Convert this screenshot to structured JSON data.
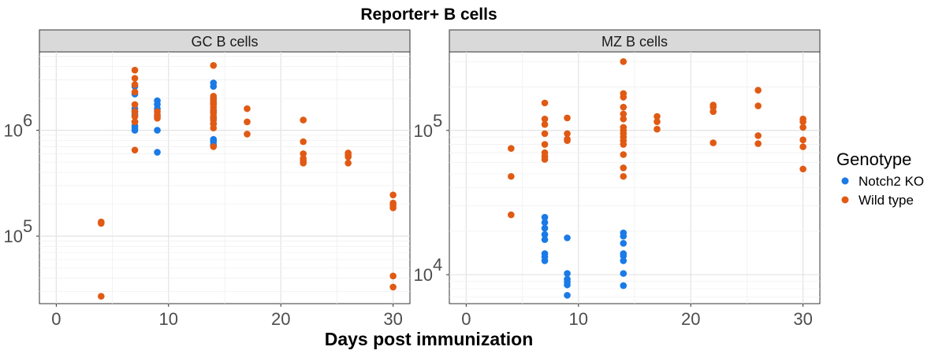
{
  "figure": {
    "title": "Reporter+ B cells",
    "xlabel": "Days post immunization"
  },
  "legend": {
    "title": "Genotype",
    "placement": "right",
    "items": [
      {
        "label": "Notch2 KO",
        "color": "#1a7ae6"
      },
      {
        "label": "Wild type",
        "color": "#e05a14"
      }
    ]
  },
  "chart_data": [
    {
      "type": "scatter",
      "panel": "GC B cells",
      "xlim": [
        -1.5,
        31.5
      ],
      "ylim": [
        23000.0,
        5500000.0
      ],
      "yscale": "log",
      "grid": true,
      "xticks": [
        {
          "value": 0,
          "label": "0"
        },
        {
          "value": 10,
          "label": "10"
        },
        {
          "value": 20,
          "label": "20"
        },
        {
          "value": 30,
          "label": "30"
        }
      ],
      "yticks": [
        {
          "value": 100000,
          "label": "10",
          "exp": "5"
        },
        {
          "value": 1000000,
          "label": "10",
          "exp": "6"
        }
      ],
      "series": [
        {
          "name": "Notch2 KO",
          "color": "#1a7ae6",
          "x": [
            7,
            7,
            7,
            7,
            7,
            7,
            7,
            7,
            7,
            9,
            9,
            9,
            9,
            9,
            9,
            14,
            14,
            14,
            14,
            14,
            14,
            14,
            14,
            14,
            14
          ],
          "y": [
            2600000.0,
            2200000.0,
            1600000.0,
            1500000.0,
            1400000.0,
            1200000.0,
            1100000.0,
            1050000.0,
            1000000.0,
            1900000.0,
            1750000.0,
            1600000.0,
            1350000.0,
            1000000.0,
            620000.0,
            2800000.0,
            2600000.0,
            2000000.0,
            1800000.0,
            1500000.0,
            1300000.0,
            1150000.0,
            820000.0,
            780000.0,
            730000.0
          ]
        },
        {
          "name": "Wild type",
          "color": "#e05a14",
          "x": [
            4,
            4,
            4,
            7,
            7,
            7,
            7,
            7,
            7,
            7,
            7,
            7,
            9,
            9,
            9,
            14,
            14,
            14,
            14,
            14,
            14,
            14,
            14,
            14,
            14,
            14,
            14,
            14,
            17,
            17,
            17,
            22,
            22,
            22,
            22,
            22,
            22,
            26,
            26,
            26,
            26,
            30,
            30,
            30,
            30,
            30,
            30
          ],
          "y": [
            136000.0,
            132000.0,
            27000.0,
            3700000.0,
            3100000.0,
            2700000.0,
            2300000.0,
            1750000.0,
            1500000.0,
            1350000.0,
            1200000.0,
            650000.0,
            1500000.0,
            1400000.0,
            1300000.0,
            4100000.0,
            2100000.0,
            1950000.0,
            1850000.0,
            1750000.0,
            1650000.0,
            1550000.0,
            1450000.0,
            1350000.0,
            1250000.0,
            1150000.0,
            1050000.0,
            700000.0,
            1600000.0,
            1200000.0,
            920000.0,
            1250000.0,
            780000.0,
            600000.0,
            540000.0,
            510000.0,
            490000.0,
            610000.0,
            580000.0,
            560000.0,
            490000.0,
            245000.0,
            205000.0,
            195000.0,
            185000.0,
            42000.0,
            33000.0
          ]
        }
      ]
    },
    {
      "type": "scatter",
      "panel": "MZ B cells",
      "xlim": [
        -1.5,
        31.5
      ],
      "ylim": [
        6300.0,
        350000.0
      ],
      "yscale": "log",
      "grid": true,
      "xticks": [
        {
          "value": 0,
          "label": "0"
        },
        {
          "value": 10,
          "label": "10"
        },
        {
          "value": 20,
          "label": "20"
        },
        {
          "value": 30,
          "label": "30"
        }
      ],
      "yticks": [
        {
          "value": 10000,
          "label": "10",
          "exp": "4"
        },
        {
          "value": 100000,
          "label": "10",
          "exp": "5"
        }
      ],
      "series": [
        {
          "name": "Notch2 KO",
          "color": "#1a7ae6",
          "x": [
            7,
            7,
            7,
            7,
            7,
            7,
            7,
            7,
            9,
            9,
            9,
            9,
            9,
            9,
            14,
            14,
            14,
            14,
            14,
            14,
            14,
            14
          ],
          "y": [
            25000.0,
            23000.0,
            21000.0,
            19000.0,
            17500.0,
            14000.0,
            13300.0,
            12500.0,
            18000.0,
            10200.0,
            9300.0,
            8900.0,
            8500.0,
            7200.0,
            19500.0,
            18500.0,
            16500.0,
            14000.0,
            13500.0,
            12500.0,
            10200.0,
            8400.0
          ]
        },
        {
          "name": "Wild type",
          "color": "#e05a14",
          "x": [
            4,
            4,
            4,
            7,
            7,
            7,
            7,
            7,
            7,
            7,
            7,
            9,
            9,
            9,
            9,
            14,
            14,
            14,
            14,
            14,
            14,
            14,
            14,
            14,
            14,
            14,
            14,
            14,
            14,
            14,
            17,
            17,
            17,
            22,
            22,
            22,
            22,
            26,
            26,
            26,
            26,
            30,
            30,
            30,
            30,
            30,
            30
          ],
          "y": [
            75000.0,
            48000.0,
            26000.0,
            155000.0,
            120000.0,
            110000.0,
            95000.0,
            80000.0,
            70000.0,
            66000.0,
            63000.0,
            122000.0,
            95000.0,
            87000.0,
            85000.0,
            300000.0,
            180000.0,
            170000.0,
            145000.0,
            130000.0,
            120000.0,
            105000.0,
            100000.0,
            95000.0,
            90000.0,
            85000.0,
            80000.0,
            68000.0,
            55000.0,
            48000.0,
            125000.0,
            115000.0,
            102000.0,
            150000.0,
            145000.0,
            135000.0,
            82000.0,
            190000.0,
            148000.0,
            92000.0,
            81000.0,
            120000.0,
            115000.0,
            105000.0,
            86000.0,
            77000.0,
            54000.0
          ]
        }
      ]
    }
  ]
}
